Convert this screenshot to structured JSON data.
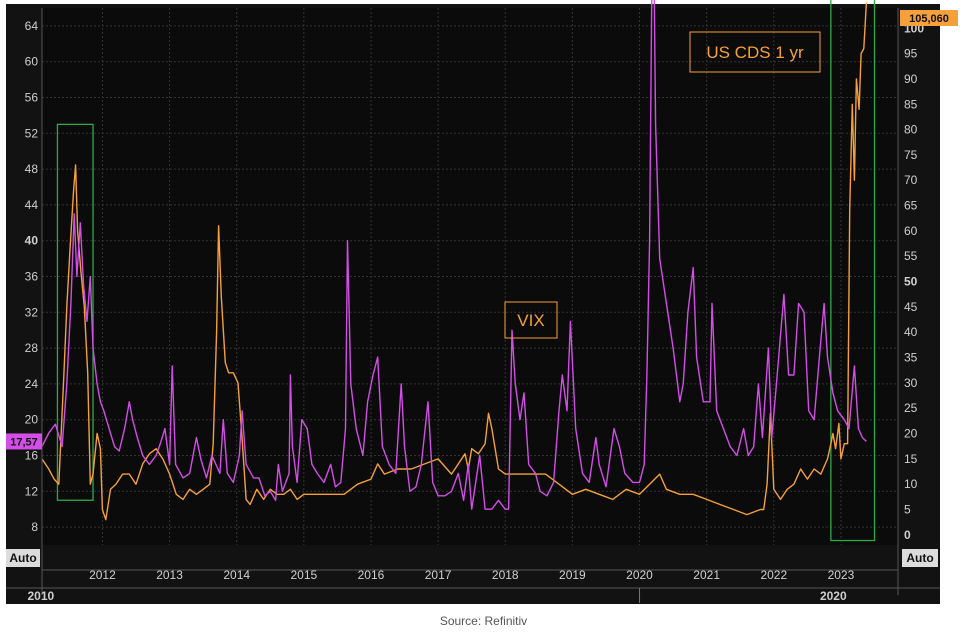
{
  "source_note": "Source: Refinitiv",
  "colors": {
    "vix": "#d24ee6",
    "cds": "#f5a03a",
    "box": "#2fa84a",
    "grid": "#333333",
    "axis_text": "#cfcfcf"
  },
  "chart_data": {
    "type": "line",
    "x_axis": {
      "years": [
        "2012",
        "2013",
        "2014",
        "2015",
        "2016",
        "2017",
        "2018",
        "2019",
        "2020",
        "2021",
        "2022",
        "2023"
      ],
      "decades": [
        "2010",
        "2020"
      ],
      "auto_label": "Auto",
      "range": [
        2011.1,
        2023.85
      ]
    },
    "left_axis": {
      "ticks": [
        "8",
        "12",
        "16",
        "20",
        "24",
        "28",
        "32",
        "36",
        "40",
        "44",
        "48",
        "52",
        "56",
        "60",
        "64"
      ],
      "range": [
        6,
        66
      ],
      "auto_label": "Auto",
      "current_value_label": "17,57"
    },
    "right_axis": {
      "ticks": [
        "0",
        "5",
        "10",
        "15",
        "20",
        "25",
        "30",
        "35",
        "40",
        "45",
        "50",
        "55",
        "60",
        "65",
        "70",
        "75",
        "80",
        "85",
        "90",
        "95",
        "100"
      ],
      "range": [
        -2,
        104
      ],
      "auto_label": "Auto",
      "current_value_label": "105,060"
    },
    "annotations": {
      "vix_label": "VIX",
      "cds_label": "US CDS 1 yr"
    },
    "highlight_boxes": [
      {
        "x": [
          2011.33,
          2011.86
        ],
        "y": [
          11,
          53
        ]
      },
      {
        "x": [
          2022.85,
          2023.5
        ],
        "y": [
          6.5,
          67
        ]
      }
    ],
    "series": [
      {
        "name": "VIX",
        "axis": "left",
        "points": [
          [
            2011.1,
            17
          ],
          [
            2011.2,
            18.5
          ],
          [
            2011.3,
            19.5
          ],
          [
            2011.4,
            17
          ],
          [
            2011.47,
            24
          ],
          [
            2011.53,
            33
          ],
          [
            2011.58,
            43
          ],
          [
            2011.62,
            36
          ],
          [
            2011.67,
            42
          ],
          [
            2011.72,
            35
          ],
          [
            2011.77,
            31
          ],
          [
            2011.82,
            36
          ],
          [
            2011.86,
            28
          ],
          [
            2011.92,
            24
          ],
          [
            2011.97,
            22
          ],
          [
            2012.02,
            21
          ],
          [
            2012.1,
            19
          ],
          [
            2012.18,
            17
          ],
          [
            2012.25,
            16.5
          ],
          [
            2012.33,
            19
          ],
          [
            2012.4,
            22
          ],
          [
            2012.45,
            20
          ],
          [
            2012.52,
            18
          ],
          [
            2012.6,
            16
          ],
          [
            2012.7,
            15
          ],
          [
            2012.8,
            16
          ],
          [
            2012.87,
            17.5
          ],
          [
            2012.93,
            19
          ],
          [
            2013.0,
            15
          ],
          [
            2013.04,
            26
          ],
          [
            2013.09,
            15
          ],
          [
            2013.2,
            13.5
          ],
          [
            2013.3,
            14
          ],
          [
            2013.4,
            18
          ],
          [
            2013.47,
            15.5
          ],
          [
            2013.55,
            13.5
          ],
          [
            2013.63,
            16
          ],
          [
            2013.75,
            14
          ],
          [
            2013.8,
            20
          ],
          [
            2013.86,
            14
          ],
          [
            2013.95,
            13
          ],
          [
            2014.04,
            16
          ],
          [
            2014.08,
            21
          ],
          [
            2014.14,
            15
          ],
          [
            2014.25,
            13.5
          ],
          [
            2014.33,
            13.5
          ],
          [
            2014.42,
            11.5
          ],
          [
            2014.5,
            12
          ],
          [
            2014.58,
            11
          ],
          [
            2014.62,
            15
          ],
          [
            2014.68,
            12
          ],
          [
            2014.78,
            14
          ],
          [
            2014.8,
            25
          ],
          [
            2014.83,
            17
          ],
          [
            2014.9,
            13
          ],
          [
            2014.97,
            20
          ],
          [
            2015.05,
            19
          ],
          [
            2015.12,
            15
          ],
          [
            2015.2,
            14
          ],
          [
            2015.3,
            13
          ],
          [
            2015.4,
            15
          ],
          [
            2015.47,
            12.5
          ],
          [
            2015.55,
            13
          ],
          [
            2015.62,
            19
          ],
          [
            2015.65,
            40
          ],
          [
            2015.7,
            24
          ],
          [
            2015.78,
            19
          ],
          [
            2015.88,
            16
          ],
          [
            2015.95,
            22
          ],
          [
            2016.03,
            25
          ],
          [
            2016.1,
            27
          ],
          [
            2016.17,
            17
          ],
          [
            2016.27,
            15
          ],
          [
            2016.37,
            14
          ],
          [
            2016.45,
            24
          ],
          [
            2016.5,
            17
          ],
          [
            2016.58,
            12
          ],
          [
            2016.67,
            12.5
          ],
          [
            2016.75,
            15
          ],
          [
            2016.85,
            22
          ],
          [
            2016.92,
            13
          ],
          [
            2017.0,
            11.5
          ],
          [
            2017.1,
            11.5
          ],
          [
            2017.2,
            12
          ],
          [
            2017.3,
            14
          ],
          [
            2017.38,
            11
          ],
          [
            2017.45,
            15
          ],
          [
            2017.5,
            10
          ],
          [
            2017.62,
            16
          ],
          [
            2017.7,
            10
          ],
          [
            2017.8,
            10
          ],
          [
            2017.9,
            11
          ],
          [
            2018.0,
            10
          ],
          [
            2018.05,
            10
          ],
          [
            2018.1,
            30
          ],
          [
            2018.15,
            24
          ],
          [
            2018.22,
            20
          ],
          [
            2018.28,
            23
          ],
          [
            2018.35,
            15
          ],
          [
            2018.45,
            14
          ],
          [
            2018.52,
            12
          ],
          [
            2018.62,
            11.5
          ],
          [
            2018.72,
            13
          ],
          [
            2018.8,
            21
          ],
          [
            2018.85,
            25
          ],
          [
            2018.92,
            21
          ],
          [
            2018.97,
            31
          ],
          [
            2019.05,
            19
          ],
          [
            2019.15,
            14
          ],
          [
            2019.25,
            13
          ],
          [
            2019.35,
            18
          ],
          [
            2019.4,
            15
          ],
          [
            2019.5,
            12.5
          ],
          [
            2019.62,
            19
          ],
          [
            2019.7,
            17
          ],
          [
            2019.78,
            14
          ],
          [
            2019.9,
            13
          ],
          [
            2020.0,
            13
          ],
          [
            2020.07,
            15
          ],
          [
            2020.11,
            25
          ],
          [
            2020.15,
            40
          ],
          [
            2020.2,
            82
          ],
          [
            2020.24,
            53
          ],
          [
            2020.3,
            38
          ],
          [
            2020.4,
            33
          ],
          [
            2020.5,
            28
          ],
          [
            2020.6,
            22
          ],
          [
            2020.65,
            24
          ],
          [
            2020.72,
            32
          ],
          [
            2020.8,
            37
          ],
          [
            2020.85,
            27
          ],
          [
            2020.95,
            22
          ],
          [
            2021.05,
            22
          ],
          [
            2021.08,
            33
          ],
          [
            2021.15,
            21
          ],
          [
            2021.25,
            19
          ],
          [
            2021.35,
            17
          ],
          [
            2021.45,
            16
          ],
          [
            2021.55,
            19
          ],
          [
            2021.62,
            16
          ],
          [
            2021.7,
            17
          ],
          [
            2021.77,
            24
          ],
          [
            2021.83,
            18
          ],
          [
            2021.92,
            28
          ],
          [
            2021.97,
            18
          ],
          [
            2022.05,
            25
          ],
          [
            2022.15,
            34
          ],
          [
            2022.22,
            25
          ],
          [
            2022.3,
            25
          ],
          [
            2022.37,
            33
          ],
          [
            2022.45,
            32
          ],
          [
            2022.52,
            21
          ],
          [
            2022.6,
            20
          ],
          [
            2022.68,
            27
          ],
          [
            2022.75,
            33
          ],
          [
            2022.8,
            27
          ],
          [
            2022.88,
            23
          ],
          [
            2022.95,
            21
          ],
          [
            2023.05,
            20
          ],
          [
            2023.12,
            19
          ],
          [
            2023.2,
            26
          ],
          [
            2023.26,
            19
          ],
          [
            2023.32,
            18
          ],
          [
            2023.38,
            17.57
          ]
        ]
      },
      {
        "name": "US CDS 1 yr",
        "axis": "right",
        "points": [
          [
            2011.1,
            15
          ],
          [
            2011.2,
            13
          ],
          [
            2011.28,
            11
          ],
          [
            2011.35,
            10
          ],
          [
            2011.42,
            30
          ],
          [
            2011.47,
            45
          ],
          [
            2011.52,
            57
          ],
          [
            2011.57,
            68
          ],
          [
            2011.6,
            73
          ],
          [
            2011.63,
            60
          ],
          [
            2011.68,
            52
          ],
          [
            2011.73,
            45
          ],
          [
            2011.78,
            32
          ],
          [
            2011.82,
            10
          ],
          [
            2011.86,
            12
          ],
          [
            2011.92,
            20
          ],
          [
            2011.97,
            17
          ],
          [
            2012.0,
            5
          ],
          [
            2012.05,
            3
          ],
          [
            2012.12,
            9
          ],
          [
            2012.2,
            10
          ],
          [
            2012.3,
            12
          ],
          [
            2012.4,
            12
          ],
          [
            2012.5,
            10
          ],
          [
            2012.6,
            14
          ],
          [
            2012.7,
            16
          ],
          [
            2012.8,
            17
          ],
          [
            2012.9,
            15
          ],
          [
            2013.0,
            12
          ],
          [
            2013.1,
            8
          ],
          [
            2013.2,
            7
          ],
          [
            2013.3,
            9
          ],
          [
            2013.4,
            8
          ],
          [
            2013.5,
            9
          ],
          [
            2013.6,
            10
          ],
          [
            2013.65,
            18
          ],
          [
            2013.7,
            40
          ],
          [
            2013.73,
            61
          ],
          [
            2013.77,
            47
          ],
          [
            2013.83,
            34
          ],
          [
            2013.88,
            32
          ],
          [
            2013.95,
            32
          ],
          [
            2014.02,
            30
          ],
          [
            2014.08,
            19
          ],
          [
            2014.14,
            7
          ],
          [
            2014.2,
            6
          ],
          [
            2014.3,
            9
          ],
          [
            2014.4,
            7
          ],
          [
            2014.5,
            9
          ],
          [
            2014.6,
            8
          ],
          [
            2014.7,
            8
          ],
          [
            2014.8,
            9
          ],
          [
            2014.9,
            7
          ],
          [
            2015.0,
            8
          ],
          [
            2015.2,
            8
          ],
          [
            2015.4,
            8
          ],
          [
            2015.6,
            8
          ],
          [
            2015.8,
            10
          ],
          [
            2016.0,
            11
          ],
          [
            2016.1,
            14
          ],
          [
            2016.2,
            12
          ],
          [
            2016.4,
            13
          ],
          [
            2016.6,
            13
          ],
          [
            2016.8,
            14
          ],
          [
            2017.0,
            15
          ],
          [
            2017.2,
            12
          ],
          [
            2017.4,
            16
          ],
          [
            2017.45,
            13
          ],
          [
            2017.5,
            17
          ],
          [
            2017.6,
            16
          ],
          [
            2017.7,
            18
          ],
          [
            2017.75,
            24
          ],
          [
            2017.8,
            21
          ],
          [
            2017.9,
            13
          ],
          [
            2018.0,
            12
          ],
          [
            2018.2,
            12
          ],
          [
            2018.4,
            12
          ],
          [
            2018.6,
            12
          ],
          [
            2018.8,
            10
          ],
          [
            2019.0,
            8
          ],
          [
            2019.2,
            9
          ],
          [
            2019.4,
            8
          ],
          [
            2019.6,
            7
          ],
          [
            2019.8,
            9
          ],
          [
            2020.0,
            8
          ],
          [
            2020.15,
            10
          ],
          [
            2020.3,
            12
          ],
          [
            2020.4,
            9
          ],
          [
            2020.6,
            8
          ],
          [
            2020.8,
            8
          ],
          [
            2021.0,
            7
          ],
          [
            2021.2,
            6
          ],
          [
            2021.4,
            5
          ],
          [
            2021.6,
            4
          ],
          [
            2021.8,
            5
          ],
          [
            2021.85,
            5
          ],
          [
            2021.9,
            10
          ],
          [
            2021.95,
            24
          ],
          [
            2022.0,
            9
          ],
          [
            2022.1,
            7
          ],
          [
            2022.2,
            9
          ],
          [
            2022.3,
            10
          ],
          [
            2022.4,
            13
          ],
          [
            2022.5,
            11
          ],
          [
            2022.6,
            13
          ],
          [
            2022.7,
            12
          ],
          [
            2022.8,
            15
          ],
          [
            2022.85,
            18
          ],
          [
            2022.88,
            20
          ],
          [
            2022.92,
            17
          ],
          [
            2022.97,
            22
          ],
          [
            2023.0,
            15
          ],
          [
            2023.05,
            18
          ],
          [
            2023.1,
            18
          ],
          [
            2023.13,
            64
          ],
          [
            2023.17,
            85
          ],
          [
            2023.2,
            70
          ],
          [
            2023.23,
            90
          ],
          [
            2023.27,
            84
          ],
          [
            2023.3,
            95
          ],
          [
            2023.34,
            96
          ],
          [
            2023.38,
            105.06
          ]
        ]
      }
    ]
  }
}
